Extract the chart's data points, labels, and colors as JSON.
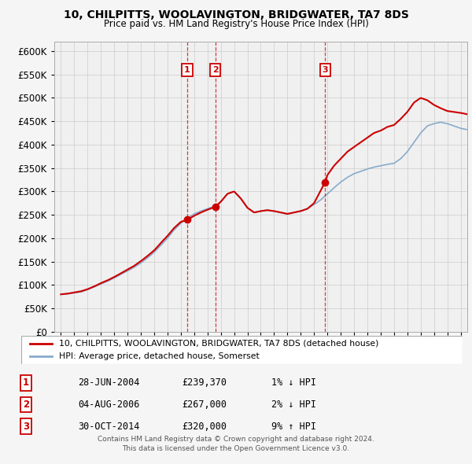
{
  "title": "10, CHILPITTS, WOOLAVINGTON, BRIDGWATER, TA7 8DS",
  "subtitle": "Price paid vs. HM Land Registry's House Price Index (HPI)",
  "legend_label1": "10, CHILPITTS, WOOLAVINGTON, BRIDGWATER, TA7 8DS (detached house)",
  "legend_label2": "HPI: Average price, detached house, Somerset",
  "transactions": [
    {
      "num": 1,
      "date": "28-JUN-2004",
      "price": 239370,
      "change": "1% ↓ HPI",
      "year": 2004.48
    },
    {
      "num": 2,
      "date": "04-AUG-2006",
      "price": 267000,
      "change": "2% ↓ HPI",
      "year": 2006.59
    },
    {
      "num": 3,
      "date": "30-OCT-2014",
      "price": 320000,
      "change": "9% ↑ HPI",
      "year": 2014.83
    }
  ],
  "footer1": "Contains HM Land Registry data © Crown copyright and database right 2024.",
  "footer2": "This data is licensed under the Open Government Licence v3.0.",
  "price_color": "#cc0000",
  "hpi_color": "#88aacc",
  "grid_color": "#cccccc",
  "background_color": "#f5f5f5",
  "plot_bg_color": "#f0f0f0",
  "ylim": [
    0,
    620000
  ],
  "yticks": [
    0,
    50000,
    100000,
    150000,
    200000,
    250000,
    300000,
    350000,
    400000,
    450000,
    500000,
    550000,
    600000
  ],
  "xstart": 1994.5,
  "xend": 2025.5
}
